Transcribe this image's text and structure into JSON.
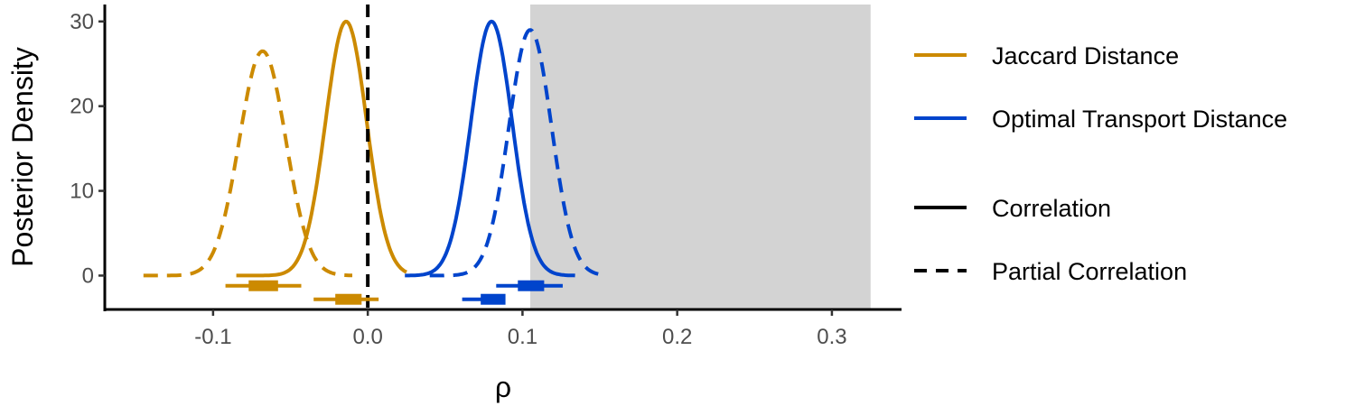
{
  "chart_data": {
    "type": "line",
    "xlabel": "ρ",
    "ylabel": "Posterior Density",
    "xlim": [
      -0.17,
      0.345
    ],
    "ylim": [
      -4,
      32
    ],
    "x_ticks": [
      -0.1,
      0.0,
      0.1,
      0.2,
      0.3
    ],
    "x_tick_labels": [
      "-0.1",
      "0.0",
      "0.1",
      "0.2",
      "0.3"
    ],
    "y_ticks": [
      0,
      10,
      20,
      30
    ],
    "y_tick_labels": [
      "0",
      "10",
      "20",
      "30"
    ],
    "grid": false,
    "legend_position": "right",
    "shaded_region": {
      "x_from": 0.105,
      "x_to": 0.325,
      "color": "#d3d3d3"
    },
    "reference_line": {
      "x": 0.0,
      "style": "dashed",
      "color": "#000000"
    },
    "series": [
      {
        "name": "Jaccard Distance",
        "kind": "Correlation",
        "color": "#cc8a00",
        "style": "solid",
        "mean": -0.014,
        "sd": 0.0133,
        "peak": 30,
        "x_range": [
          -0.085,
          0.025
        ],
        "interval": {
          "low": -0.035,
          "high": 0.007,
          "inner_low": -0.021,
          "inner_high": -0.004,
          "y": -2.8
        }
      },
      {
        "name": "Jaccard Distance",
        "kind": "Partial Correlation",
        "color": "#cc8a00",
        "style": "dashed",
        "mean": -0.068,
        "sd": 0.015,
        "peak": 26.5,
        "x_range": [
          -0.145,
          -0.01
        ],
        "interval": {
          "low": -0.092,
          "high": -0.043,
          "inner_low": -0.077,
          "inner_high": -0.058,
          "y": -1.2
        }
      },
      {
        "name": "Optimal Transport Distance",
        "kind": "Correlation",
        "color": "#0044cc",
        "style": "solid",
        "mean": 0.08,
        "sd": 0.0133,
        "peak": 30,
        "x_range": [
          0.024,
          0.134
        ],
        "interval": {
          "low": 0.061,
          "high": 0.085,
          "inner_low": 0.073,
          "inner_high": 0.089,
          "y": -2.8
        }
      },
      {
        "name": "Optimal Transport Distance",
        "kind": "Partial Correlation",
        "color": "#0044cc",
        "style": "dashed",
        "mean": 0.105,
        "sd": 0.0138,
        "peak": 29,
        "x_range": [
          0.04,
          0.152
        ],
        "interval": {
          "low": 0.083,
          "high": 0.126,
          "inner_low": 0.097,
          "inner_high": 0.114,
          "y": -1.2
        }
      }
    ],
    "legend": {
      "colors": [
        {
          "label": "Jaccard Distance",
          "color": "#cc8a00"
        },
        {
          "label": "Optimal Transport Distance",
          "color": "#0044cc"
        }
      ],
      "linetypes": [
        {
          "label": "Correlation",
          "style": "solid"
        },
        {
          "label": "Partial Correlation",
          "style": "dashed"
        }
      ]
    }
  }
}
